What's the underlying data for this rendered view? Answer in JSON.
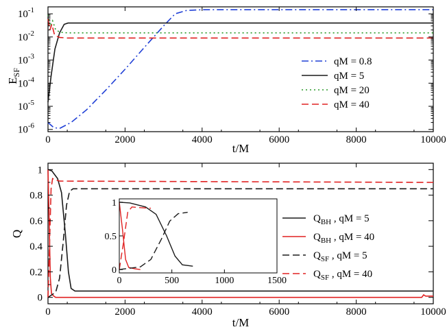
{
  "chart_data": [
    {
      "type": "line",
      "xlabel": "t/M",
      "ylabel": "E",
      "ylabel_sub": "SF",
      "ylim": [
        8e-07,
        0.2
      ],
      "xlim": [
        0,
        10000
      ],
      "yscale": "log",
      "grid": false,
      "legend": "center-right",
      "x_ticks": [
        "0",
        "2000",
        "4000",
        "6000",
        "8000",
        "10000"
      ],
      "y_ticks": [
        {
          "base": "10",
          "exp": "-1"
        },
        {
          "base": "10",
          "exp": "-2"
        },
        {
          "base": "10",
          "exp": "-3"
        },
        {
          "base": "10",
          "exp": "-4"
        },
        {
          "base": "10",
          "exp": "-5"
        },
        {
          "base": "10",
          "exp": "-6"
        }
      ],
      "series": [
        {
          "name": "qM = 0.8",
          "color": "#1f3fd6",
          "style": "dash-dot",
          "points": [
            [
              0,
              2e-06
            ],
            [
              150,
              1.2e-06
            ],
            [
              300,
              1.1e-06
            ],
            [
              600,
              2e-06
            ],
            [
              1000,
              7e-06
            ],
            [
              1500,
              5e-05
            ],
            [
              2000,
              0.0004
            ],
            [
              2500,
              0.0035
            ],
            [
              3000,
              0.03
            ],
            [
              3300,
              0.1
            ],
            [
              3600,
              0.14
            ],
            [
              4000,
              0.15
            ],
            [
              6000,
              0.15
            ],
            [
              10000,
              0.15
            ]
          ]
        },
        {
          "name": "qM = 5",
          "color": "#1a1a1a",
          "style": "solid",
          "points": [
            [
              0,
              1.5e-05
            ],
            [
              80,
              0.0002
            ],
            [
              180,
              0.003
            ],
            [
              300,
              0.015
            ],
            [
              420,
              0.035
            ],
            [
              520,
              0.04
            ],
            [
              800,
              0.04
            ],
            [
              10000,
              0.04
            ]
          ]
        },
        {
          "name": "qM = 20",
          "color": "#2a9a2a",
          "style": "dotted",
          "points": [
            [
              0,
              0.09
            ],
            [
              60,
              0.03
            ],
            [
              120,
              0.05
            ],
            [
              200,
              0.02
            ],
            [
              320,
              0.016
            ],
            [
              500,
              0.015
            ],
            [
              10000,
              0.015
            ]
          ]
        },
        {
          "name": "qM = 40",
          "color": "#e02020",
          "style": "dashed",
          "points": [
            [
              0,
              0.06
            ],
            [
              50,
              0.02
            ],
            [
              100,
              0.035
            ],
            [
              170,
              0.012
            ],
            [
              300,
              0.0095
            ],
            [
              500,
              0.009
            ],
            [
              10000,
              0.009
            ]
          ]
        }
      ]
    },
    {
      "type": "line",
      "xlabel": "t/M",
      "ylabel": "Q",
      "ylim": [
        -0.05,
        1.05
      ],
      "xlim": [
        0,
        10000
      ],
      "grid": false,
      "legend": "center-right",
      "x_ticks": [
        "0",
        "2000",
        "4000",
        "6000",
        "8000",
        "10000"
      ],
      "y_ticks": [
        "0",
        "0.2",
        "0.4",
        "0.6",
        "0.8",
        "1"
      ],
      "series": [
        {
          "name": "Q_BH , qM = 5",
          "color": "#1a1a1a",
          "style": "solid",
          "points": [
            [
              0,
              1.0
            ],
            [
              100,
              0.99
            ],
            [
              250,
              0.93
            ],
            [
              350,
              0.82
            ],
            [
              450,
              0.5
            ],
            [
              530,
              0.2
            ],
            [
              600,
              0.07
            ],
            [
              700,
              0.05
            ],
            [
              10000,
              0.05
            ]
          ]
        },
        {
          "name": "Q_BH , qM = 40",
          "color": "#e02020",
          "style": "solid",
          "points": [
            [
              0,
              1.0
            ],
            [
              30,
              0.6
            ],
            [
              60,
              0.15
            ],
            [
              90,
              0.03
            ],
            [
              120,
              0.02
            ],
            [
              150,
              0.01
            ],
            [
              200,
              0.0
            ],
            [
              9700,
              0.0
            ],
            [
              9750,
              0.02
            ],
            [
              9800,
              0.01
            ],
            [
              10000,
              0.01
            ]
          ]
        },
        {
          "name": "Q_SF , qM = 5",
          "color": "#1a1a1a",
          "style": "dashed",
          "points": [
            [
              0,
              0.0
            ],
            [
              200,
              0.04
            ],
            [
              300,
              0.15
            ],
            [
              400,
              0.45
            ],
            [
              480,
              0.72
            ],
            [
              560,
              0.83
            ],
            [
              650,
              0.85
            ],
            [
              10000,
              0.85
            ]
          ]
        },
        {
          "name": "Q_SF , qM = 40",
          "color": "#e02020",
          "style": "dashed",
          "points": [
            [
              0,
              0.0
            ],
            [
              40,
              0.4
            ],
            [
              80,
              0.85
            ],
            [
              120,
              0.93
            ],
            [
              200,
              0.92
            ],
            [
              300,
              0.91
            ],
            [
              10000,
              0.9
            ]
          ]
        }
      ],
      "legend_entries": [
        {
          "main": "Q",
          "sub": "BH",
          "rest": " , qM = 5"
        },
        {
          "main": "Q",
          "sub": "BH",
          "rest": " , qM = 40"
        },
        {
          "main": "Q",
          "sub": "SF",
          "rest": " , qM = 5"
        },
        {
          "main": "Q",
          "sub": "SF",
          "rest": " , qM = 40"
        }
      ],
      "inset": {
        "xlim": [
          0,
          1500
        ],
        "ylim": [
          -0.05,
          1.05
        ],
        "x_ticks": [
          "0",
          "500",
          "1000",
          "1500"
        ],
        "y_ticks": [
          "0",
          "0.5",
          "1"
        ]
      }
    }
  ]
}
